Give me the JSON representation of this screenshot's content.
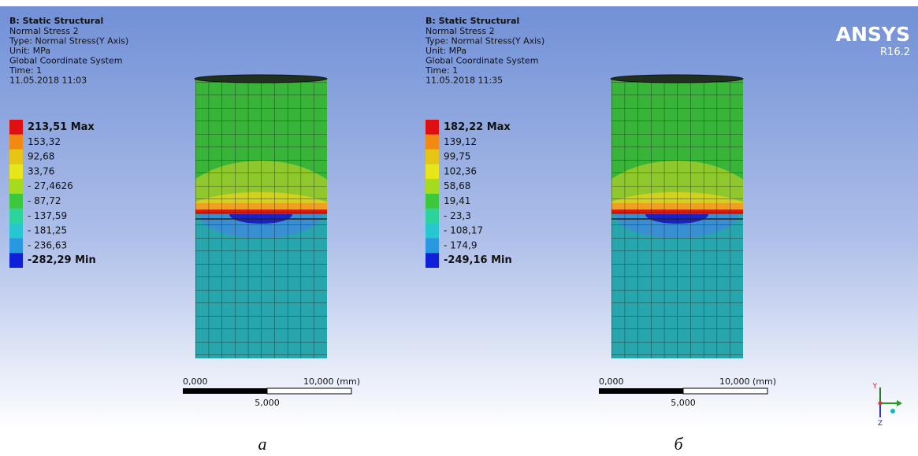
{
  "panels": [
    {
      "title": "B: Static Structural",
      "lines": [
        "Normal Stress 2",
        "Type: Normal Stress(Y Axis)",
        "Unit: MPa",
        "Global Coordinate System",
        "Time: 1",
        "11.05.2018 11:03"
      ],
      "legend": [
        "213,51 Max",
        "153,32",
        "92,68",
        "33,76",
        "- 27,4626",
        "- 87,72",
        "- 137,59",
        "- 181,25",
        "- 236,63",
        "-282,29 Min"
      ],
      "scale": {
        "left": "0,000",
        "right": "10,000 (mm)",
        "middle": "5,000"
      },
      "caption": "а"
    },
    {
      "title": "B: Static Structural",
      "lines": [
        "Normal Stress 2",
        "Type: Normal Stress(Y Axis)",
        "Unit: MPa",
        "Global Coordinate System",
        "Time: 1",
        "11.05.2018 11:35"
      ],
      "legend": [
        "182,22 Max",
        "139,12",
        "99,75",
        "102,36",
        "58,68",
        "19,41",
        "- 23,3",
        "- 108,17",
        "- 174,9",
        "-249,16 Min"
      ],
      "scale": {
        "left": "0,000",
        "right": "10,000 (mm)",
        "middle": "5,000"
      },
      "caption": "б"
    }
  ],
  "logo": {
    "name": "ANSYS",
    "version": "R16.2"
  },
  "triad": {
    "y": "Y",
    "z": "Z"
  }
}
